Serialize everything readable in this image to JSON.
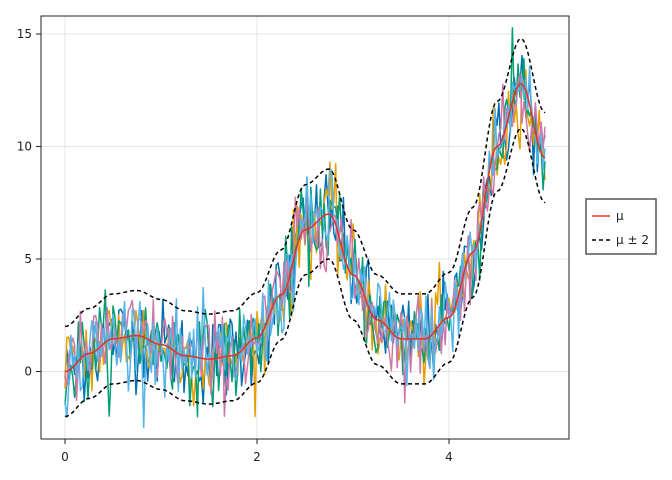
{
  "chart_data": {
    "type": "line",
    "title": "",
    "xlabel": "",
    "ylabel": "",
    "xlim": [
      -0.25,
      5.25
    ],
    "ylim": [
      -3.0,
      15.8
    ],
    "x_ticks": [
      0,
      2,
      4
    ],
    "x_tick_labels": [
      "0",
      "2",
      "4"
    ],
    "y_ticks": [
      0,
      5,
      10,
      15
    ],
    "y_tick_labels": [
      "0",
      "5",
      "10",
      "15"
    ],
    "grid": true,
    "legend_position": "right",
    "x": [
      0.0,
      0.25,
      0.5,
      0.75,
      1.0,
      1.25,
      1.5,
      1.75,
      2.0,
      2.25,
      2.5,
      2.75,
      3.0,
      3.25,
      3.5,
      3.75,
      4.0,
      4.25,
      4.5,
      4.75,
      5.0
    ],
    "series": [
      {
        "name": "μ",
        "style": "solid",
        "color": "#e8302a",
        "values": [
          0.0,
          0.8,
          1.45,
          1.6,
          1.2,
          0.7,
          0.55,
          0.7,
          1.5,
          3.4,
          6.3,
          7.0,
          4.3,
          2.3,
          1.45,
          1.45,
          2.4,
          5.3,
          10.0,
          12.8,
          9.5
        ]
      },
      {
        "name": "μ ± 2",
        "style": "dashed",
        "color": "#000000",
        "values_upper": [
          2.0,
          2.8,
          3.45,
          3.6,
          3.2,
          2.7,
          2.55,
          2.7,
          3.5,
          5.4,
          8.3,
          9.0,
          6.3,
          4.3,
          3.45,
          3.45,
          4.4,
          7.3,
          12.0,
          14.8,
          11.5
        ],
        "values_lower": [
          -2.0,
          -1.2,
          -0.55,
          -0.4,
          -0.8,
          -1.3,
          -1.45,
          -1.3,
          -0.5,
          1.4,
          4.3,
          5.0,
          2.3,
          0.3,
          -0.55,
          -0.55,
          0.4,
          3.3,
          8.0,
          10.8,
          7.5
        ]
      }
    ],
    "sample_colors": [
      "#0072b2",
      "#e69f00",
      "#009e73",
      "#cc79a7",
      "#56b4e9"
    ],
    "sample_noise_sd": 1.0
  },
  "legend": {
    "mu_label": "μ",
    "band_label": "μ ± 2"
  }
}
